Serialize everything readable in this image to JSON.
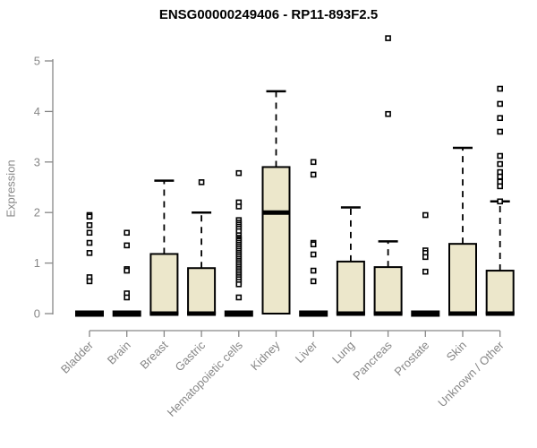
{
  "title": "ENSG00000249406 - RP11-893F2.5",
  "chart_data": {
    "type": "boxplot",
    "title": "ENSG00000249406 - RP11-893F2.5",
    "xlabel": "",
    "ylabel": "Expression",
    "ylim": [
      0,
      5.5
    ],
    "yticks": [
      0,
      1,
      2,
      3,
      4,
      5
    ],
    "grid": "off",
    "categories": [
      "Bladder",
      "Brain",
      "Breast",
      "Gastric",
      "Hematopoietic cells",
      "Kidney",
      "Liver",
      "Lung",
      "Pancreas",
      "Prostate",
      "Skin",
      "Unknown / Other"
    ],
    "series": [
      {
        "name": "Bladder",
        "q1": 0,
        "median": 0,
        "q3": 0,
        "whisker_low": 0,
        "whisker_high": 0,
        "outliers": [
          1.95,
          1.92,
          1.75,
          1.6,
          1.4,
          1.2,
          0.72,
          0.64
        ]
      },
      {
        "name": "Brain",
        "q1": 0,
        "median": 0,
        "q3": 0,
        "whisker_low": 0,
        "whisker_high": 0,
        "outliers": [
          1.6,
          1.35,
          0.88,
          0.85,
          0.4,
          0.32
        ]
      },
      {
        "name": "Breast",
        "q1": 0,
        "median": 0,
        "q3": 1.18,
        "whisker_low": 0,
        "whisker_high": 2.63,
        "outliers": []
      },
      {
        "name": "Gastric",
        "q1": 0,
        "median": 0,
        "q3": 0.9,
        "whisker_low": 0,
        "whisker_high": 2.0,
        "outliers": [
          2.6
        ]
      },
      {
        "name": "Hematopoietic cells",
        "q1": 0,
        "median": 0,
        "q3": 0,
        "whisker_low": 0,
        "whisker_high": 0,
        "outliers": [
          2.78,
          2.2,
          2.12,
          1.85,
          1.8,
          1.76,
          1.72,
          1.68,
          1.63,
          1.55,
          1.5,
          1.47,
          1.44,
          1.4,
          1.36,
          1.32,
          1.28,
          1.24,
          1.2,
          1.16,
          1.12,
          1.08,
          1.04,
          1.0,
          0.96,
          0.92,
          0.88,
          0.84,
          0.8,
          0.76,
          0.72,
          0.68,
          0.63,
          0.58,
          0.32
        ]
      },
      {
        "name": "Kidney",
        "q1": 0,
        "median": 2.0,
        "q3": 2.9,
        "whisker_low": 0,
        "whisker_high": 4.4,
        "outliers": []
      },
      {
        "name": "Liver",
        "q1": 0,
        "median": 0,
        "q3": 0,
        "whisker_low": 0,
        "whisker_high": 0,
        "outliers": [
          3.0,
          2.75,
          1.4,
          1.37,
          1.17,
          0.85,
          0.64
        ]
      },
      {
        "name": "Lung",
        "q1": 0,
        "median": 0,
        "q3": 1.03,
        "whisker_low": 0,
        "whisker_high": 2.1,
        "outliers": []
      },
      {
        "name": "Pancreas",
        "q1": 0,
        "median": 0,
        "q3": 0.92,
        "whisker_low": 0,
        "whisker_high": 1.43,
        "outliers": [
          5.45,
          3.95
        ]
      },
      {
        "name": "Prostate",
        "q1": 0,
        "median": 0,
        "q3": 0,
        "whisker_low": 0,
        "whisker_high": 0,
        "outliers": [
          1.95,
          1.25,
          1.2,
          1.12,
          0.83
        ]
      },
      {
        "name": "Skin",
        "q1": 0,
        "median": 0,
        "q3": 1.38,
        "whisker_low": 0,
        "whisker_high": 3.28,
        "outliers": []
      },
      {
        "name": "Unknown / Other",
        "q1": 0,
        "median": 0,
        "q3": 0.85,
        "whisker_low": 0,
        "whisker_high": 2.22,
        "outliers": [
          4.45,
          4.15,
          3.87,
          3.6,
          3.12,
          2.96,
          2.8,
          2.71,
          2.61,
          2.52,
          2.22
        ]
      }
    ]
  },
  "colors": {
    "box_fill": "#ECE7CB",
    "box_border": "#000000",
    "median": "#000000",
    "whisker": "#000000",
    "outlier_stroke": "#000000",
    "outlier_fill": "#ffffff",
    "axis": "#878787",
    "tick_label": "#878787",
    "title": "#000000",
    "background": "#ffffff"
  }
}
